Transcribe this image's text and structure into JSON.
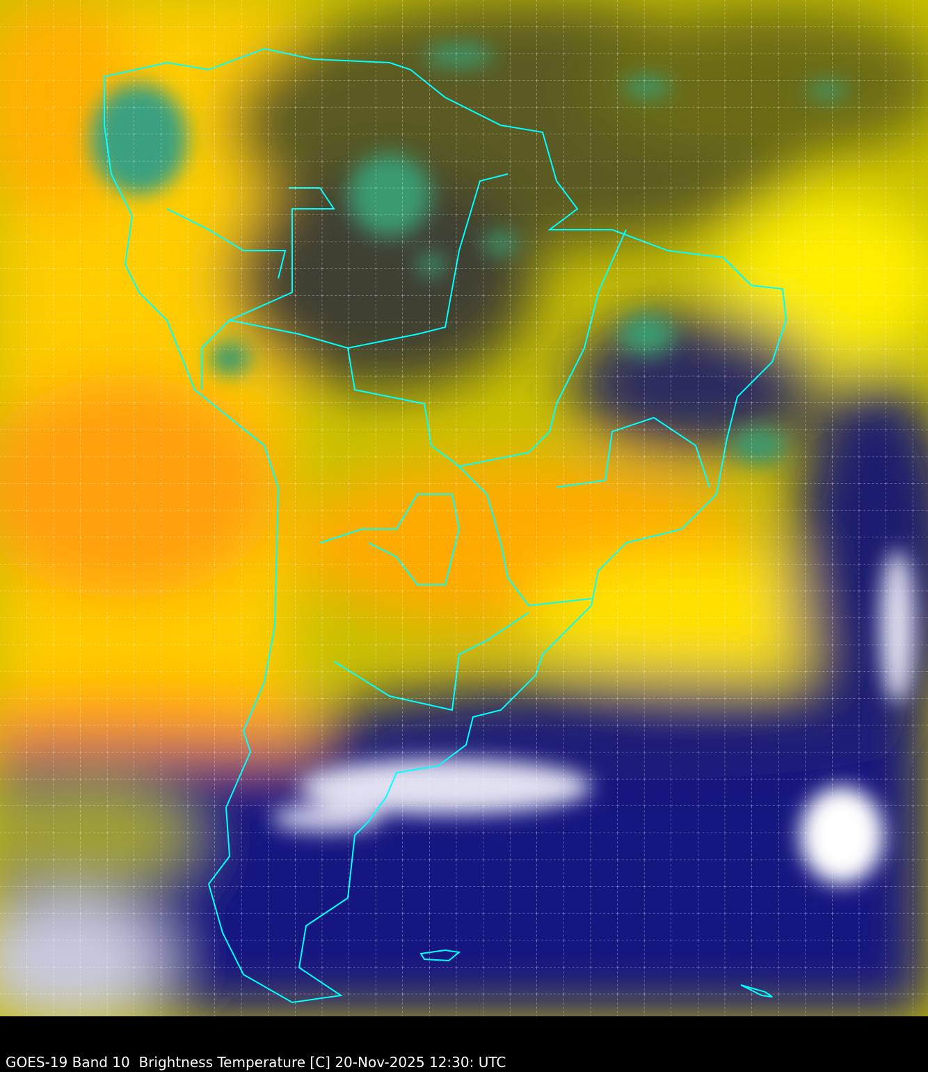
{
  "caption": "GOES-19 Band 10  Brightness Temperature [C] 20-Nov-2025 12:30: UTC",
  "map": {
    "region": "South America",
    "colors": {
      "warm": "#ffff00",
      "warmer": "#ff9900",
      "mid": "#8a8a10",
      "cold": "#101070",
      "coldest": "#ffffff",
      "cloud_top": "#3a9a70",
      "borders": "#00ffff",
      "grid": "#ffffff"
    }
  }
}
